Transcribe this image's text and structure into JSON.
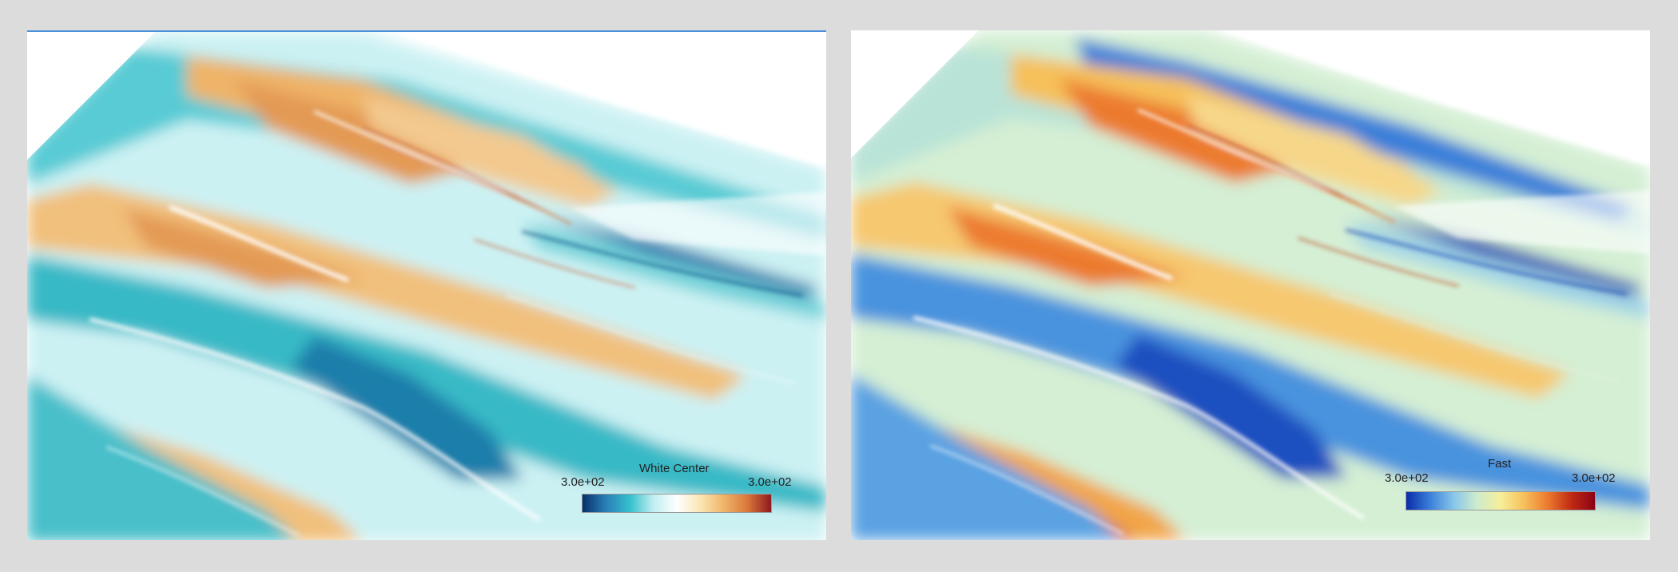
{
  "panels": [
    {
      "id": "left",
      "colormap": {
        "title": "White Center",
        "min_label": "3.0e+02",
        "max_label": "3.0e+02",
        "colors": [
          "#08306b",
          "#2a7fb8",
          "#34c0cc",
          "#bfeef0",
          "#ffffff",
          "#fbe6b4",
          "#efb468",
          "#d9773a",
          "#8e1a1f"
        ]
      }
    },
    {
      "id": "right",
      "colormap": {
        "title": "Fast",
        "min_label": "3.0e+02",
        "max_label": "3.0e+02",
        "colors": [
          "#0b2ca8",
          "#3a7fd9",
          "#87c5ea",
          "#cdeccd",
          "#f6ef9a",
          "#f6c05a",
          "#ec7a2f",
          "#c02a12",
          "#8a0216"
        ]
      }
    }
  ]
}
